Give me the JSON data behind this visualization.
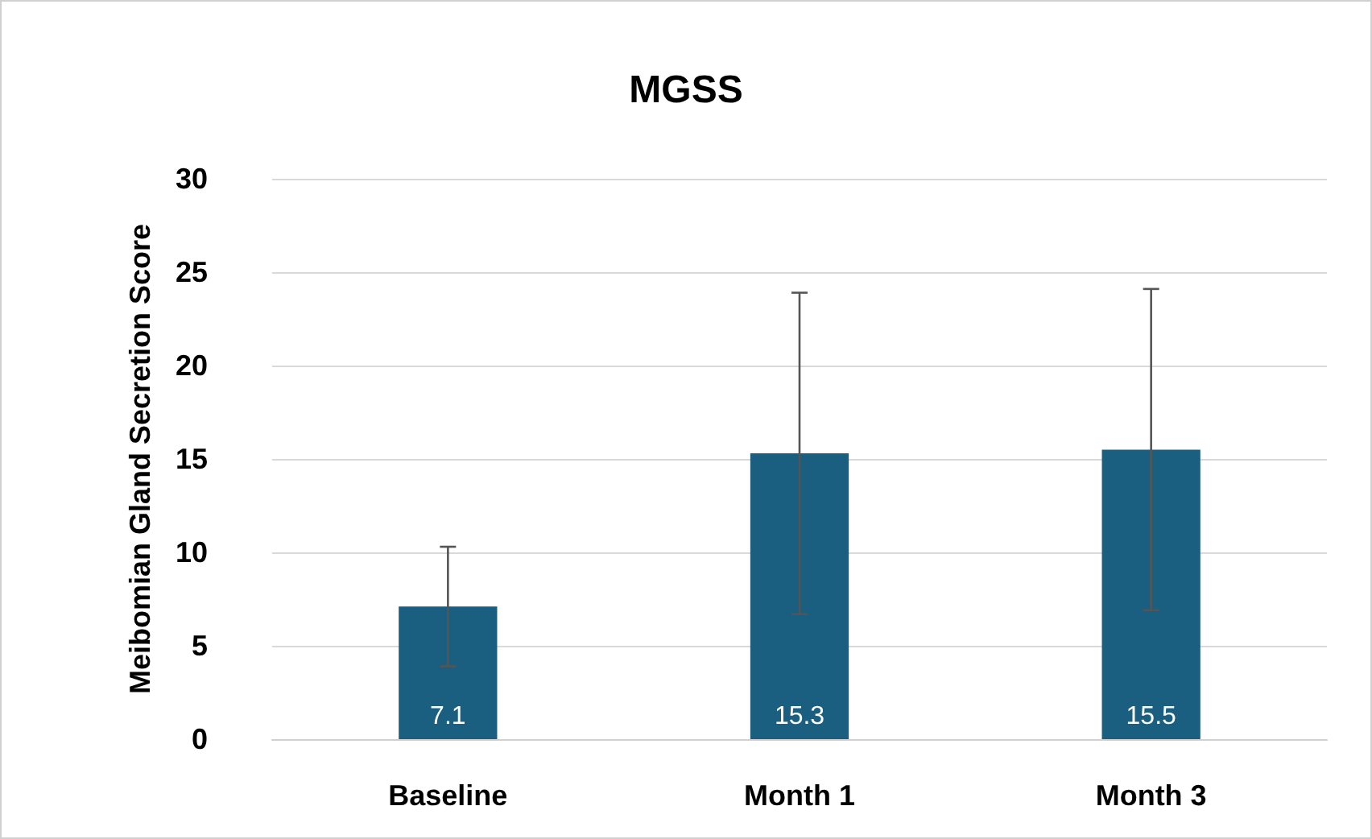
{
  "chart_data": {
    "type": "bar",
    "title": "MGSS",
    "ylabel": "Meibomian Gland Secretion Score",
    "categories": [
      "Baseline",
      "Month 1",
      "Month 3"
    ],
    "values": [
      7.1,
      15.3,
      15.5
    ],
    "errors": [
      3.2,
      8.6,
      8.6
    ],
    "color": "#1a5e80",
    "ylim": [
      0,
      30
    ],
    "yticks": [
      0,
      5,
      10,
      15,
      20,
      25,
      30
    ],
    "grid": "y",
    "data_labels": true
  }
}
